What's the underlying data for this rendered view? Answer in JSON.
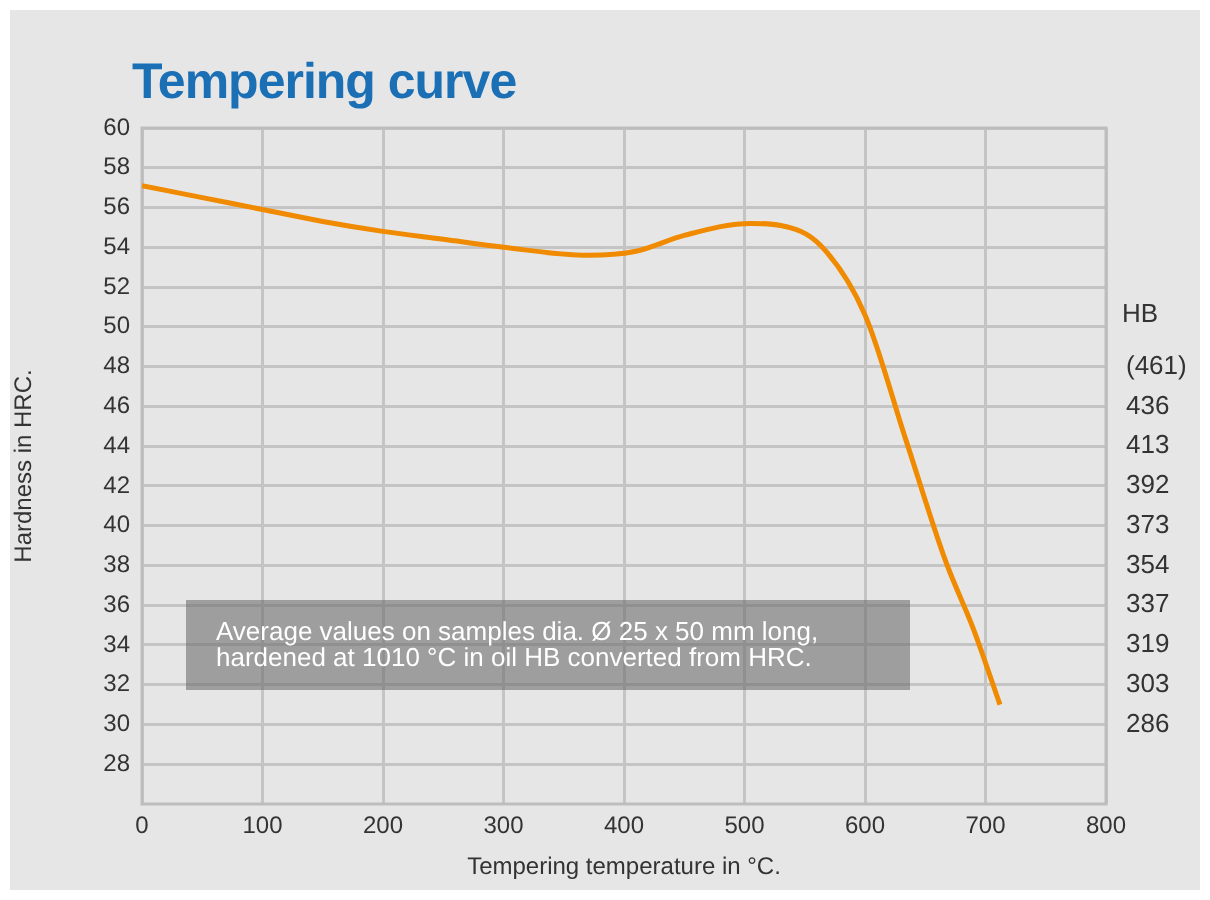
{
  "chart_data": {
    "type": "line",
    "title": "Tempering curve",
    "xlabel": "Tempering temperature in °C.",
    "ylabel": "Hardness in HRC.",
    "x": [
      0,
      50,
      100,
      150,
      200,
      250,
      300,
      370,
      410,
      450,
      505,
      530,
      563,
      600,
      634,
      667,
      690,
      712
    ],
    "series": [
      {
        "color": "#f08a00",
        "values": [
          57.1,
          56.5,
          55.9,
          55.3,
          54.8,
          54.4,
          54.0,
          53.6,
          53.8,
          54.6,
          55.2,
          55.1,
          54.1,
          50.6,
          44.3,
          38.2,
          34.8,
          31.0
        ]
      }
    ],
    "xlim": [
      0,
      800
    ],
    "xticks": [
      0,
      100,
      200,
      300,
      400,
      500,
      600,
      700,
      800
    ],
    "ylim": [
      26,
      60
    ],
    "yticks": [
      28,
      30,
      32,
      34,
      36,
      38,
      40,
      42,
      44,
      46,
      48,
      50,
      52,
      54,
      56,
      58,
      60
    ],
    "annotations": [
      "Average values on samples dia. Ø 25 x 50 mm long, hardened at 1010 °C in oil HB converted from HRC.",
      "HB",
      "(461)",
      "436",
      "413",
      "392",
      "373",
      "354",
      "337",
      "319",
      "303",
      "286"
    ],
    "grid": true,
    "legend": false,
    "marker": "none",
    "line_style": "solid"
  }
}
